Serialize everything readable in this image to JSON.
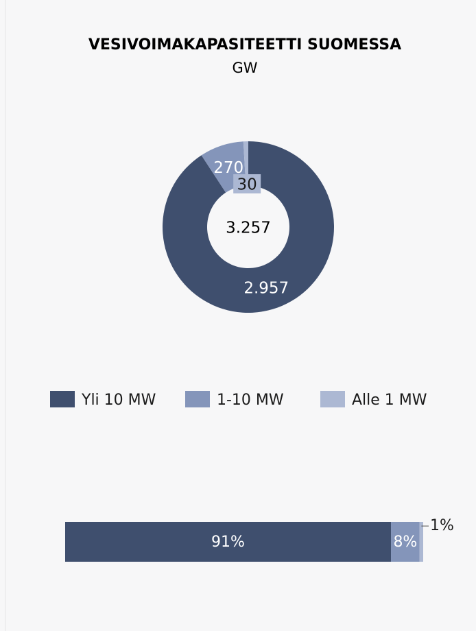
{
  "chart_data": [
    {
      "type": "pie",
      "title": "VESIVOIMAKAPASITEETTI SUOMESSA",
      "subtitle": "GW",
      "categories": [
        "Yli 10 MW",
        "1-10 MW",
        "Alle 1 MW"
      ],
      "values": [
        2957,
        270,
        30
      ],
      "value_labels": [
        "2.957",
        "270",
        "30"
      ],
      "colors": [
        "#3f4f6e",
        "#8495ba",
        "#acb8d3"
      ],
      "center_value": 3257,
      "center_label": "3.257",
      "legend": "bottom"
    },
    {
      "type": "bar",
      "orientation": "horizontal",
      "stacked": true,
      "values": [
        91,
        8,
        1
      ],
      "value_labels": [
        "91%",
        "8%",
        "1%"
      ],
      "colors": [
        "#3f4f6e",
        "#8495ba",
        "#acb8d3"
      ]
    }
  ]
}
